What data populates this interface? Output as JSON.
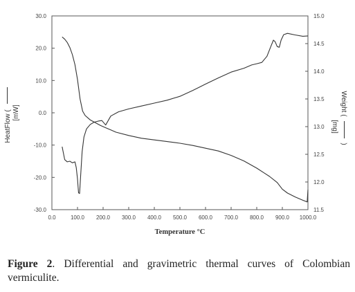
{
  "chart_data": {
    "type": "line",
    "title": "",
    "xlabel": "Temperature °C",
    "ylabel_left": "HeatFlow (",
    "ylabel_left_unit": "[mW]",
    "ylabel_right": "Weight (",
    "ylabel_right_unit": "[mg]",
    "right_label_close": ")",
    "xlim": [
      0,
      1000
    ],
    "ylim_left": [
      -30,
      30
    ],
    "ylim_right": [
      11.5,
      15.0
    ],
    "x_ticks": [
      "0.0",
      "100.0",
      "200.0",
      "300.0",
      "400.0",
      "500.0",
      "600.0",
      "700.0",
      "800.0",
      "900.0",
      "1000.0"
    ],
    "y_ticks_left": [
      "30.0",
      "20.0",
      "10.0",
      "0.0",
      "-10.0",
      "-20.0",
      "-30.0"
    ],
    "y_ticks_right": [
      "15.0",
      "14.5",
      "14.0",
      "13.5",
      "13.0",
      "12.5",
      "12.0",
      "11.5"
    ],
    "grid": false,
    "series": [
      {
        "axis": "left",
        "x": [
          40,
          50,
          60,
          70,
          80,
          90,
          95,
          100,
          104,
          108,
          112,
          118,
          125,
          135,
          150,
          165,
          180,
          195,
          210,
          230,
          260,
          300,
          350,
          400,
          450,
          500,
          550,
          600,
          650,
          700,
          750,
          780,
          800,
          820,
          840,
          855,
          865,
          872,
          880,
          888,
          895,
          905,
          920,
          950,
          980,
          1000
        ],
        "y": [
          -10.5,
          -14.5,
          -15.2,
          -15.0,
          -15.5,
          -15.2,
          -17.0,
          -20.5,
          -24.8,
          -25.0,
          -20.0,
          -12.0,
          -7.5,
          -5.0,
          -3.6,
          -2.9,
          -2.6,
          -2.4,
          -3.8,
          -1.0,
          0.3,
          1.2,
          2.1,
          3.0,
          3.9,
          5.1,
          6.9,
          8.9,
          10.8,
          12.6,
          13.8,
          14.8,
          15.2,
          15.6,
          17.5,
          20.5,
          22.5,
          22.0,
          20.5,
          20.3,
          22.5,
          24.2,
          24.6,
          24.1,
          23.7,
          23.8
        ],
        "color": "#333333"
      },
      {
        "axis": "right",
        "x": [
          40,
          50,
          60,
          70,
          80,
          90,
          100,
          110,
          120,
          130,
          140,
          150,
          170,
          190,
          210,
          230,
          250,
          300,
          350,
          400,
          450,
          500,
          550,
          600,
          650,
          700,
          750,
          800,
          850,
          880,
          900,
          920,
          950,
          980,
          997,
          1000
        ],
        "y": [
          14.62,
          14.58,
          14.52,
          14.43,
          14.3,
          14.12,
          13.85,
          13.5,
          13.28,
          13.2,
          13.16,
          13.12,
          13.07,
          13.02,
          12.98,
          12.94,
          12.9,
          12.84,
          12.79,
          12.76,
          12.73,
          12.7,
          12.66,
          12.61,
          12.56,
          12.48,
          12.38,
          12.25,
          12.1,
          11.99,
          11.87,
          11.8,
          11.73,
          11.67,
          11.64,
          11.86
        ],
        "color": "#333333"
      }
    ]
  },
  "caption": {
    "label": "Figure 2",
    "text": ". Differential and gravimetric thermal curves of Colombian vermiculite."
  }
}
